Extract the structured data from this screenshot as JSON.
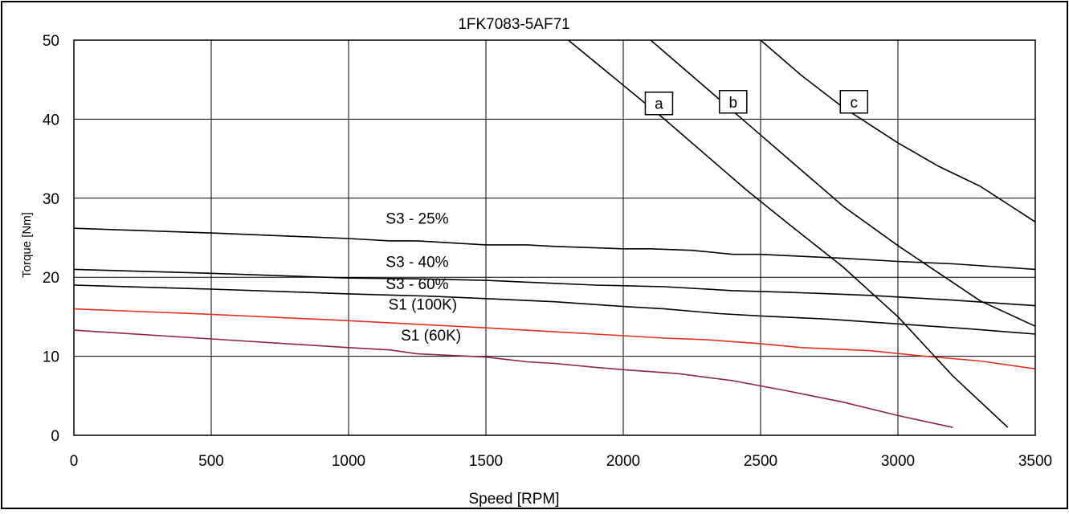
{
  "chart_data": {
    "type": "line",
    "title": "1FK7083-5AF71",
    "xlabel": "Speed [RPM]",
    "ylabel": "Torque [Nm]",
    "xlim": [
      0,
      3500
    ],
    "ylim": [
      0,
      50
    ],
    "xticks": [
      0,
      500,
      1000,
      1500,
      2000,
      2500,
      3000,
      3500
    ],
    "yticks": [
      0,
      10,
      20,
      30,
      40,
      50
    ],
    "grid": true,
    "colors": {
      "black": "#000000",
      "red": "#e0301e",
      "purple": "#8b2252"
    },
    "series": [
      {
        "name": "S3 - 25%",
        "color": "#000000",
        "x": [
          0,
          500,
          1000,
          1150,
          1250,
          1500,
          1650,
          1750,
          2000,
          2100,
          2250,
          2400,
          2500,
          2800,
          3000,
          3200,
          3500
        ],
        "y": [
          26.2,
          25.6,
          24.9,
          24.6,
          24.6,
          24.1,
          24.1,
          23.9,
          23.6,
          23.6,
          23.4,
          22.9,
          22.9,
          22.4,
          22.0,
          21.7,
          21.0
        ]
      },
      {
        "name": "S3 - 40%",
        "color": "#000000",
        "x": [
          0,
          500,
          1000,
          1250,
          1500,
          1700,
          1900,
          2150,
          2400,
          2600,
          2900,
          3200,
          3500
        ],
        "y": [
          21.0,
          20.5,
          19.9,
          19.8,
          19.6,
          19.3,
          19.0,
          18.8,
          18.3,
          18.1,
          17.7,
          17.1,
          16.4
        ]
      },
      {
        "name": "S3 - 60%",
        "color": "#000000",
        "x": [
          0,
          500,
          1000,
          1300,
          1500,
          1750,
          2000,
          2150,
          2350,
          2500,
          2750,
          3000,
          3250,
          3500
        ],
        "y": [
          19.0,
          18.5,
          17.9,
          17.6,
          17.3,
          16.9,
          16.3,
          16.0,
          15.4,
          15.1,
          14.7,
          14.1,
          13.5,
          12.8
        ]
      },
      {
        "name": "S1 (100K)",
        "color": "#e0301e",
        "x": [
          0,
          500,
          1000,
          1500,
          1800,
          2000,
          2150,
          2300,
          2500,
          2650,
          2900,
          3100,
          3300,
          3500
        ],
        "y": [
          16.0,
          15.3,
          14.5,
          13.6,
          13.0,
          12.6,
          12.3,
          12.1,
          11.6,
          11.1,
          10.7,
          10.0,
          9.4,
          8.4
        ]
      },
      {
        "name": "S1 (60K)",
        "color": "#8b2252",
        "x": [
          0,
          500,
          1000,
          1150,
          1250,
          1500,
          1650,
          1750,
          1900,
          2000,
          2200,
          2400,
          2600,
          2800,
          3000,
          3200
        ],
        "y": [
          13.3,
          12.2,
          11.1,
          10.8,
          10.3,
          9.9,
          9.3,
          9.1,
          8.6,
          8.3,
          7.8,
          6.9,
          5.6,
          4.2,
          2.5,
          1.0
        ]
      },
      {
        "name": "a",
        "color": "#000000",
        "x": [
          1800,
          2000,
          2150,
          2300,
          2450,
          2600,
          2800,
          3000,
          3200,
          3400
        ],
        "y": [
          50.0,
          44.3,
          40.0,
          35.5,
          31.0,
          26.8,
          21.3,
          15.0,
          7.5,
          1.0
        ]
      },
      {
        "name": "b",
        "color": "#000000",
        "x": [
          2100,
          2300,
          2450,
          2600,
          2800,
          3000,
          3150,
          3300,
          3500
        ],
        "y": [
          50.0,
          44.0,
          39.5,
          35.0,
          29.0,
          24.0,
          20.5,
          17.0,
          13.8
        ]
      },
      {
        "name": "c",
        "color": "#000000",
        "x": [
          2500,
          2650,
          2800,
          3000,
          3150,
          3300,
          3500
        ],
        "y": [
          50.0,
          45.5,
          41.5,
          37.0,
          34.0,
          31.5,
          27.0
        ]
      }
    ],
    "series_labels": [
      {
        "text": "S3 - 25%",
        "x": 1250,
        "y": 26.8
      },
      {
        "text": "S3 - 40%",
        "x": 1250,
        "y": 21.3
      },
      {
        "text": "S3 - 60%",
        "x": 1250,
        "y": 18.5
      },
      {
        "text": "S1 (100K)",
        "x": 1270,
        "y": 15.9
      },
      {
        "text": "S1 (60K)",
        "x": 1300,
        "y": 12.0
      }
    ],
    "box_labels": [
      {
        "text": "a",
        "x": 2130,
        "y": 42
      },
      {
        "text": "b",
        "x": 2400,
        "y": 42.2
      },
      {
        "text": "c",
        "x": 2840,
        "y": 42.2
      }
    ]
  }
}
